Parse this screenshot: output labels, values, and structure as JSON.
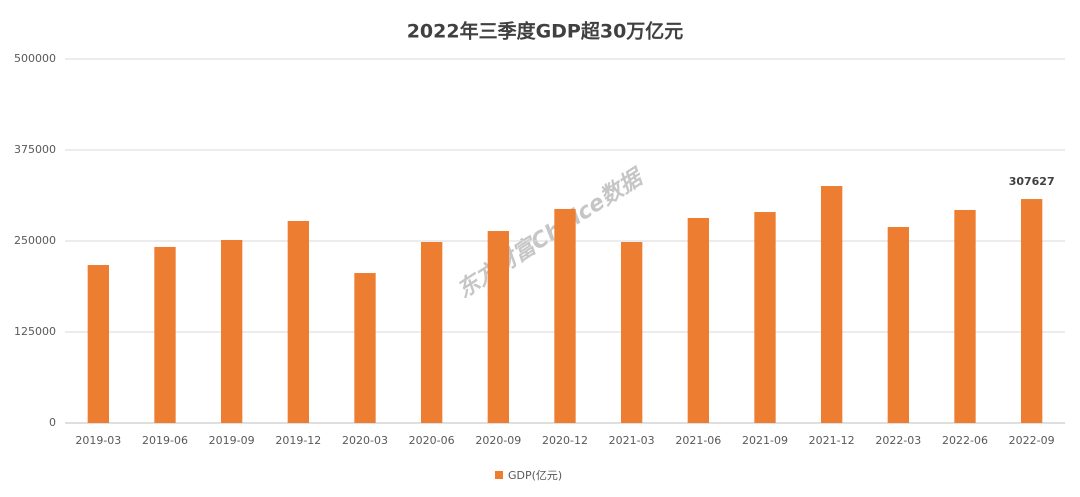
{
  "chart_data": {
    "type": "bar",
    "title": "2022年三季度GDP超30万亿元",
    "watermark": "东方财富Choice数据",
    "categories": [
      "2019-03",
      "2019-06",
      "2019-09",
      "2019-12",
      "2020-03",
      "2020-06",
      "2020-09",
      "2020-12",
      "2021-03",
      "2021-06",
      "2021-09",
      "2021-12",
      "2022-03",
      "2022-06",
      "2022-09"
    ],
    "series": [
      {
        "name": "GDP(亿元)",
        "color": "#ed7d31",
        "values": [
          217000,
          241800,
          251400,
          277500,
          206000,
          248600,
          263700,
          294000,
          248600,
          281600,
          289800,
          325500,
          269200,
          292600,
          307627
        ],
        "value_labels": [
          null,
          null,
          null,
          null,
          null,
          null,
          null,
          null,
          null,
          null,
          null,
          null,
          null,
          null,
          "307627"
        ]
      }
    ],
    "ylim": [
      0,
      500000
    ],
    "yticks": [
      0,
      125000,
      250000,
      375000,
      500000
    ],
    "grid": true,
    "legend": "bottom"
  }
}
